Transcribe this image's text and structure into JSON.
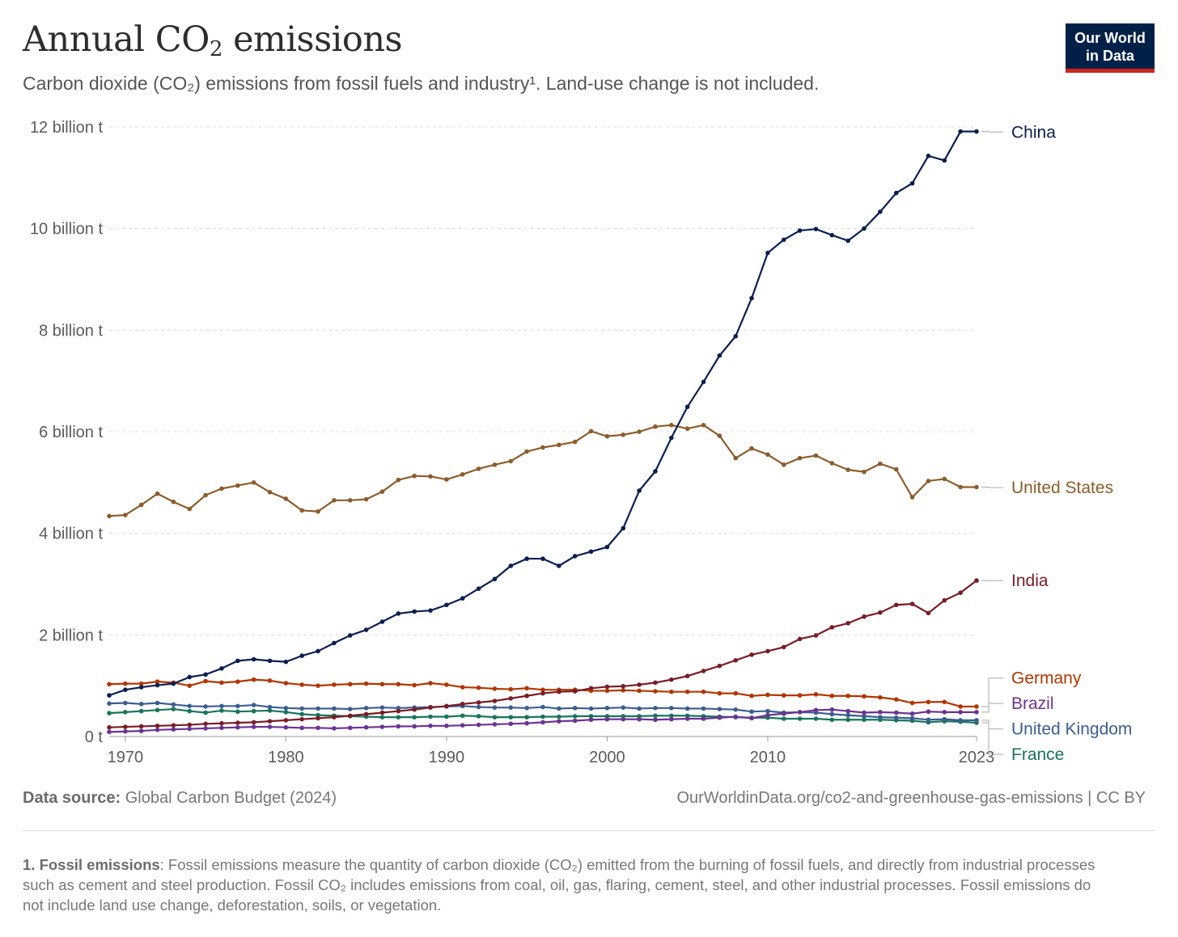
{
  "header": {
    "title_main": "Annual CO",
    "title_sub": "2",
    "title_end": " emissions",
    "subtitle": "Carbon dioxide (CO₂) emissions from fossil fuels and industry¹. Land-use change is not included.",
    "logo_line1": "Our World",
    "logo_line2": "in Data"
  },
  "chart_data": {
    "type": "line",
    "xlim": [
      1969,
      2023
    ],
    "ylim": [
      0,
      12
    ],
    "y_unit": "billion t",
    "y_ticks": [
      {
        "value": 0,
        "label": "0 t"
      },
      {
        "value": 2,
        "label": "2 billion t"
      },
      {
        "value": 4,
        "label": "4 billion t"
      },
      {
        "value": 6,
        "label": "6 billion t"
      },
      {
        "value": 8,
        "label": "8 billion t"
      },
      {
        "value": 10,
        "label": "10 billion t"
      },
      {
        "value": 12,
        "label": "12 billion t"
      }
    ],
    "x_ticks": [
      {
        "value": 1970,
        "label": "1970"
      },
      {
        "value": 1980,
        "label": "1980"
      },
      {
        "value": 1990,
        "label": "1990"
      },
      {
        "value": 2000,
        "label": "2000"
      },
      {
        "value": 2010,
        "label": "2010"
      },
      {
        "value": 2023,
        "label": "2023"
      }
    ],
    "grid": "horizontal-dashed",
    "legend": "right-inline-labels",
    "x": [
      1969,
      1970,
      1971,
      1972,
      1973,
      1974,
      1975,
      1976,
      1977,
      1978,
      1979,
      1980,
      1981,
      1982,
      1983,
      1984,
      1985,
      1986,
      1987,
      1988,
      1989,
      1990,
      1991,
      1992,
      1993,
      1994,
      1995,
      1996,
      1997,
      1998,
      1999,
      2000,
      2001,
      2002,
      2003,
      2004,
      2005,
      2006,
      2007,
      2008,
      2009,
      2010,
      2011,
      2012,
      2013,
      2014,
      2015,
      2016,
      2017,
      2018,
      2019,
      2020,
      2021,
      2022,
      2023
    ],
    "series": [
      {
        "name": "China",
        "color": "#0b1e4f",
        "label_y": 11.9,
        "values": [
          0.81,
          0.92,
          0.97,
          1.01,
          1.04,
          1.17,
          1.22,
          1.34,
          1.49,
          1.52,
          1.49,
          1.47,
          1.59,
          1.68,
          1.84,
          1.99,
          2.1,
          2.26,
          2.42,
          2.46,
          2.48,
          2.59,
          2.72,
          2.91,
          3.1,
          3.36,
          3.5,
          3.5,
          3.36,
          3.55,
          3.64,
          3.73,
          4.1,
          4.84,
          5.22,
          5.88,
          6.49,
          6.98,
          7.5,
          7.88,
          8.63,
          9.52,
          9.78,
          9.96,
          9.99,
          9.87,
          9.76,
          10.0,
          10.33,
          10.7,
          10.89,
          11.43,
          11.34,
          11.91,
          11.91
        ]
      },
      {
        "name": "United States",
        "color": "#8b5d2c",
        "label_y": 4.9,
        "values": [
          4.34,
          4.36,
          4.56,
          4.78,
          4.62,
          4.48,
          4.75,
          4.88,
          4.94,
          5.0,
          4.81,
          4.68,
          4.45,
          4.43,
          4.65,
          4.65,
          4.67,
          4.82,
          5.05,
          5.13,
          5.12,
          5.06,
          5.16,
          5.27,
          5.35,
          5.42,
          5.61,
          5.69,
          5.74,
          5.8,
          6.01,
          5.91,
          5.94,
          6.0,
          6.1,
          6.13,
          6.06,
          6.13,
          5.92,
          5.48,
          5.67,
          5.55,
          5.35,
          5.48,
          5.53,
          5.38,
          5.25,
          5.21,
          5.37,
          5.26,
          4.71,
          5.03,
          5.07,
          4.91,
          4.91
        ]
      },
      {
        "name": "India",
        "color": "#7a1c26",
        "label_y": 3.07,
        "values": [
          0.18,
          0.19,
          0.2,
          0.21,
          0.22,
          0.23,
          0.25,
          0.26,
          0.27,
          0.28,
          0.3,
          0.32,
          0.34,
          0.36,
          0.38,
          0.41,
          0.44,
          0.47,
          0.5,
          0.53,
          0.57,
          0.6,
          0.64,
          0.67,
          0.7,
          0.75,
          0.8,
          0.85,
          0.88,
          0.89,
          0.95,
          0.98,
          0.99,
          1.02,
          1.06,
          1.12,
          1.19,
          1.29,
          1.39,
          1.5,
          1.61,
          1.68,
          1.76,
          1.92,
          1.99,
          2.15,
          2.23,
          2.36,
          2.44,
          2.59,
          2.61,
          2.43,
          2.68,
          2.83,
          3.07
        ]
      },
      {
        "name": "Germany",
        "color": "#b13600",
        "label_y": 1.15,
        "values": [
          1.03,
          1.04,
          1.04,
          1.08,
          1.06,
          1.0,
          1.09,
          1.06,
          1.08,
          1.12,
          1.1,
          1.05,
          1.02,
          1.0,
          1.02,
          1.03,
          1.04,
          1.03,
          1.03,
          1.01,
          1.05,
          1.02,
          0.97,
          0.96,
          0.94,
          0.93,
          0.95,
          0.92,
          0.92,
          0.92,
          0.9,
          0.9,
          0.91,
          0.9,
          0.89,
          0.88,
          0.88,
          0.88,
          0.85,
          0.85,
          0.8,
          0.82,
          0.81,
          0.81,
          0.83,
          0.8,
          0.8,
          0.79,
          0.77,
          0.73,
          0.66,
          0.68,
          0.68,
          0.59,
          0.59
        ]
      },
      {
        "name": "Brazil",
        "color": "#6b3394",
        "label_y": 0.65,
        "values": [
          0.09,
          0.1,
          0.11,
          0.13,
          0.14,
          0.15,
          0.16,
          0.17,
          0.18,
          0.19,
          0.19,
          0.18,
          0.17,
          0.17,
          0.16,
          0.17,
          0.18,
          0.19,
          0.2,
          0.2,
          0.21,
          0.21,
          0.22,
          0.23,
          0.24,
          0.25,
          0.26,
          0.28,
          0.3,
          0.31,
          0.33,
          0.34,
          0.34,
          0.34,
          0.33,
          0.34,
          0.35,
          0.35,
          0.37,
          0.39,
          0.36,
          0.42,
          0.45,
          0.48,
          0.52,
          0.53,
          0.5,
          0.47,
          0.48,
          0.47,
          0.45,
          0.49,
          0.48,
          0.48,
          0.48
        ]
      },
      {
        "name": "United Kingdom",
        "color": "#3b5e91",
        "label_y": 0.15,
        "values": [
          0.65,
          0.66,
          0.64,
          0.66,
          0.63,
          0.6,
          0.59,
          0.6,
          0.6,
          0.62,
          0.58,
          0.56,
          0.55,
          0.55,
          0.55,
          0.54,
          0.56,
          0.57,
          0.56,
          0.57,
          0.58,
          0.59,
          0.6,
          0.58,
          0.57,
          0.57,
          0.56,
          0.58,
          0.55,
          0.56,
          0.55,
          0.56,
          0.57,
          0.55,
          0.56,
          0.56,
          0.55,
          0.55,
          0.54,
          0.53,
          0.49,
          0.5,
          0.47,
          0.48,
          0.47,
          0.44,
          0.42,
          0.4,
          0.38,
          0.37,
          0.36,
          0.33,
          0.34,
          0.32,
          0.32
        ]
      },
      {
        "name": "France",
        "color": "#18755b",
        "label_y": -0.35,
        "values": [
          0.46,
          0.48,
          0.5,
          0.52,
          0.54,
          0.5,
          0.47,
          0.51,
          0.49,
          0.5,
          0.51,
          0.48,
          0.44,
          0.42,
          0.41,
          0.4,
          0.39,
          0.38,
          0.38,
          0.38,
          0.39,
          0.39,
          0.41,
          0.4,
          0.38,
          0.38,
          0.38,
          0.39,
          0.39,
          0.4,
          0.4,
          0.4,
          0.4,
          0.4,
          0.41,
          0.41,
          0.41,
          0.4,
          0.39,
          0.38,
          0.37,
          0.37,
          0.35,
          0.35,
          0.35,
          0.33,
          0.33,
          0.33,
          0.33,
          0.32,
          0.31,
          0.28,
          0.3,
          0.29,
          0.27
        ]
      }
    ]
  },
  "footer": {
    "source_label": "Data source:",
    "source_text": " Global Carbon Budget (2024)",
    "url": "OurWorldinData.org/co2-and-greenhouse-gas-emissions | CC BY",
    "footnote_label": "1. Fossil emissions",
    "footnote_text": ": Fossil emissions measure the quantity of carbon dioxide (CO₂) emitted from the burning of fossil fuels, and directly from industrial processes such as cement and steel production. Fossil CO₂ includes emissions from coal, oil, gas, flaring, cement, steel, and other industrial processes. Fossil emissions do not include land use change, deforestation, soils, or vegetation."
  }
}
